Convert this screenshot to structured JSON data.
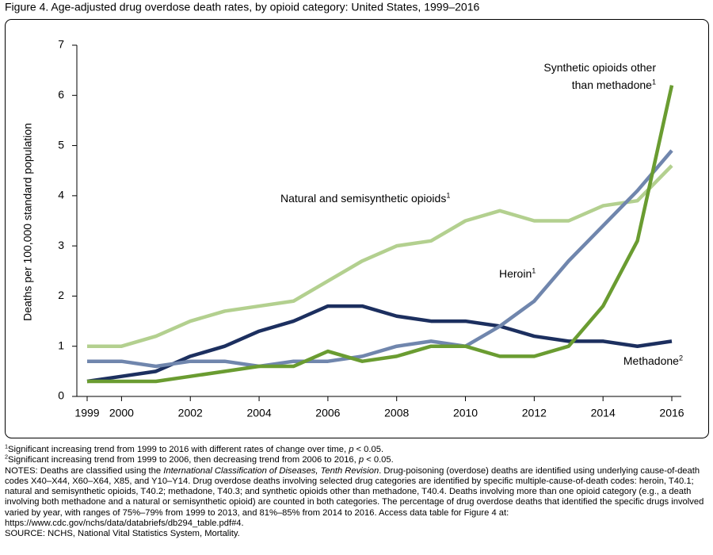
{
  "chart_data": {
    "type": "line",
    "title": "Figure 4. Age-adjusted drug overdose death rates, by opioid category: United States, 1999–2016",
    "y_label": "Deaths per 100,000 standard population",
    "x": [
      1999,
      2000,
      2001,
      2002,
      2003,
      2004,
      2005,
      2006,
      2007,
      2008,
      2009,
      2010,
      2011,
      2012,
      2013,
      2014,
      2015,
      2016
    ],
    "xlim": [
      1999,
      2016
    ],
    "xticks": [
      1999,
      2000,
      2002,
      2004,
      2006,
      2008,
      2010,
      2012,
      2014,
      2016
    ],
    "ylim": [
      0,
      7
    ],
    "yticks": [
      0,
      1,
      2,
      3,
      4,
      5,
      6,
      7
    ],
    "series": [
      {
        "name": "Natural and semisynthetic opioids",
        "sup": "1",
        "color": "#b3d08f",
        "values": [
          1.0,
          1.0,
          1.2,
          1.5,
          1.7,
          1.8,
          1.9,
          2.3,
          2.7,
          3.0,
          3.1,
          3.5,
          3.7,
          3.5,
          3.5,
          3.8,
          3.9,
          4.6
        ]
      },
      {
        "name": "Methadone",
        "sup": "2",
        "color": "#1c2f5f",
        "values": [
          0.3,
          0.4,
          0.5,
          0.8,
          1.0,
          1.3,
          1.5,
          1.8,
          1.8,
          1.6,
          1.5,
          1.5,
          1.4,
          1.2,
          1.1,
          1.1,
          1.0,
          1.1
        ]
      },
      {
        "name": "Heroin",
        "sup": "1",
        "color": "#7086ad",
        "values": [
          0.7,
          0.7,
          0.6,
          0.7,
          0.7,
          0.6,
          0.7,
          0.7,
          0.8,
          1.0,
          1.1,
          1.0,
          1.4,
          1.9,
          2.7,
          3.4,
          4.1,
          4.9
        ]
      },
      {
        "name": "Synthetic opioids other than methadone",
        "sup": "1",
        "color": "#6a9c31",
        "values": [
          0.3,
          0.3,
          0.3,
          0.4,
          0.5,
          0.6,
          0.6,
          0.9,
          0.7,
          0.8,
          1.0,
          1.0,
          0.8,
          0.8,
          1.0,
          1.8,
          3.1,
          6.2
        ]
      }
    ]
  },
  "notes": [
    {
      "sup": "1",
      "parts": [
        {
          "text": "Significant increasing trend from 1999 to 2016 with different rates of change over time, "
        },
        {
          "text": "p",
          "italic": true
        },
        {
          "text": " < 0.05."
        }
      ]
    },
    {
      "sup": "2",
      "parts": [
        {
          "text": "Significant increasing trend from 1999 to 2006, then decreasing trend from 2006 to 2016, "
        },
        {
          "text": "p",
          "italic": true
        },
        {
          "text": " < 0.05."
        }
      ]
    },
    {
      "parts": [
        {
          "text": "NOTES: Deaths are classified using the "
        },
        {
          "text": "International Classification of Diseases, Tenth Revision",
          "italic": true
        },
        {
          "text": ". Drug-poisoning (overdose) deaths are identified using underlying cause-of-death codes X40–X44, X60–X64, X85, and Y10–Y14. Drug overdose deaths involving selected drug categories are identified by specific multiple-cause-of-death codes:  heroin, T40.1; natural and semisynthetic opioids, T40.2;  methadone, T40.3; and synthetic opioids other than methadone, T40.4. Deaths involving more than one opioid category (e.g., a death involving both methadone and a natural or semisynthetic opioid) are counted in both categories. The percentage of drug overdose deaths that identified the specific drugs involved varied by year, with ranges of 75%–79% from 1999 to 2013, and 81%–85% from 2014 to 2016. Access data table for Figure 4 at: https://www.cdc.gov/nchs/data/databriefs/db294_table.pdf#4."
        }
      ]
    },
    {
      "parts": [
        {
          "text": "SOURCE: NCHS, National Vital Statistics System, Mortality."
        }
      ]
    }
  ]
}
